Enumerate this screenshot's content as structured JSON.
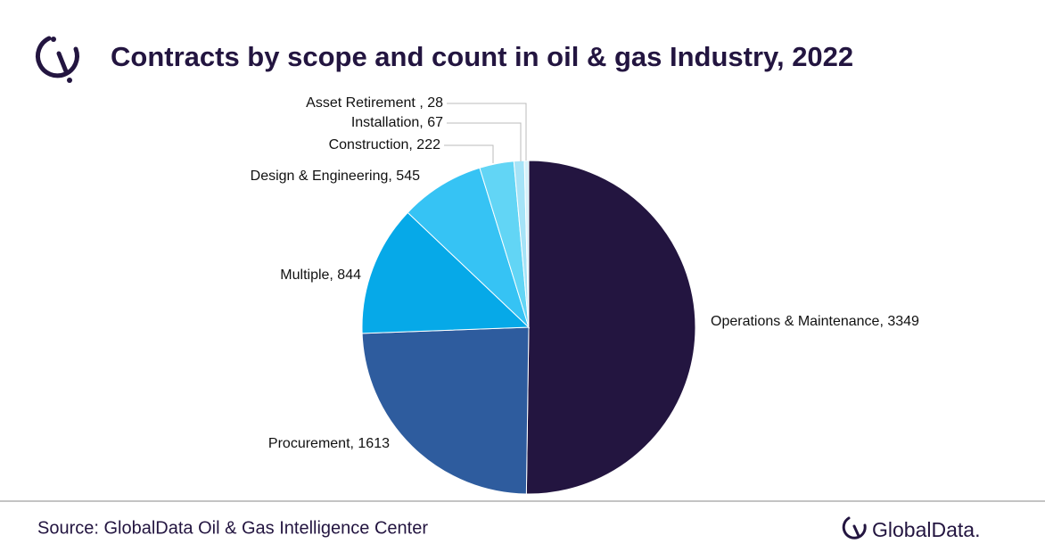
{
  "chart_data": {
    "type": "pie",
    "title": "Contracts by scope and count in oil & gas Industry, 2022",
    "values": [
      3349,
      1613,
      844,
      545,
      222,
      67,
      28
    ],
    "value_labels": [
      "Operations & Maintenance, 3349",
      "Procurement, 1613",
      "Multiple,  844",
      "Design & Engineering, 545",
      "Construction, 222",
      "Installation, 67",
      "Asset Retirement , 28"
    ],
    "colors": [
      "#231540",
      "#2e5c9e",
      "#06a9e8",
      "#36c3f4",
      "#62d5f5",
      "#a5e3f7",
      "#d4f1fa"
    ],
    "source": "Source: GlobalData Oil & Gas Intelligence Center",
    "brand": "GlobalData."
  }
}
